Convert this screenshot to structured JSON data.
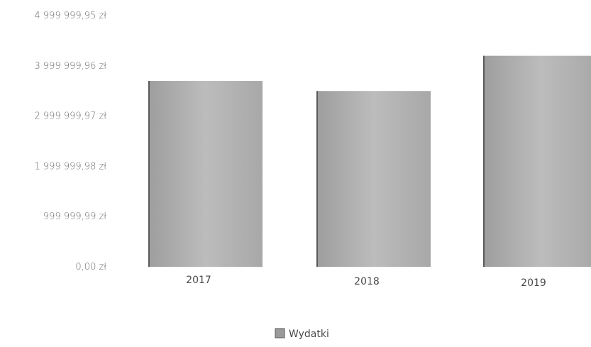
{
  "chart_data": {
    "type": "bar",
    "categories": [
      "2017",
      "2018",
      "2019"
    ],
    "series": [
      {
        "name": "Wydatki",
        "values": [
          3700000,
          3500000,
          4200000
        ]
      }
    ],
    "xlabel": "",
    "ylabel": "",
    "ylim": [
      0,
      4999999.95
    ],
    "yticks": [
      0,
      999999.99,
      1999999.98,
      2999999.97,
      3999999.96,
      4999999.95
    ],
    "ytick_labels": [
      "0,00 zł",
      "999 999,99 zł",
      "1 999 999,98 zł",
      "2 999 999,97 zł",
      "3 999 999,96 zł",
      "4 999 999,95 zł"
    ],
    "grid": false,
    "legend_position": "bottom-center",
    "colors": {
      "bar": "#b3b3b3",
      "bar_edge": "#5a5a5a",
      "text": "#4a4a4a",
      "tick_text": "#6a6a6a"
    }
  }
}
